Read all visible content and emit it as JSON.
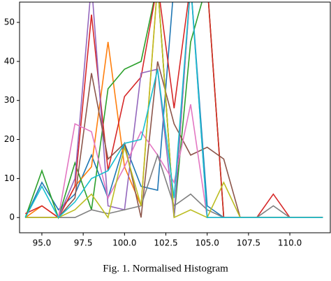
{
  "chart_data": {
    "type": "line",
    "caption": "Fig. 1.  Normalised Histogram",
    "x": [
      94,
      95,
      96,
      97,
      98,
      99,
      100,
      101,
      102,
      103,
      104,
      105,
      106,
      107,
      108,
      109,
      110,
      111,
      112
    ],
    "series": [
      {
        "color": "#1f77b4",
        "values": [
          0,
          9,
          2,
          6,
          16,
          5,
          19,
          8,
          7,
          60,
          60,
          3,
          0,
          0,
          0,
          0,
          0,
          0,
          0
        ]
      },
      {
        "color": "#ff7f0e",
        "values": [
          0,
          3,
          0,
          8,
          13,
          45,
          13,
          3,
          60,
          0,
          60,
          60,
          0,
          0,
          0,
          0,
          0,
          0,
          0
        ]
      },
      {
        "color": "#2ca02c",
        "values": [
          0,
          12,
          0,
          14,
          2,
          33,
          38,
          40,
          60,
          0,
          45,
          60,
          0,
          0,
          0,
          0,
          0,
          0,
          0
        ]
      },
      {
        "color": "#d62728",
        "values": [
          1,
          3,
          0,
          8,
          52,
          12,
          31,
          36,
          60,
          28,
          60,
          60,
          0,
          0,
          0,
          6,
          0,
          0,
          0
        ]
      },
      {
        "color": "#9467bd",
        "values": [
          0,
          0,
          0,
          10,
          60,
          3,
          2,
          37,
          38,
          0,
          60,
          0,
          0,
          0,
          0,
          0,
          0,
          0,
          0
        ]
      },
      {
        "color": "#8c564b",
        "values": [
          0,
          0,
          0,
          5,
          37,
          15,
          19,
          0,
          40,
          24,
          16,
          18,
          15,
          0,
          0,
          0,
          0,
          0,
          0
        ]
      },
      {
        "color": "#e377c2",
        "values": [
          0,
          0,
          0,
          24,
          22,
          5,
          13,
          22,
          16,
          9,
          29,
          0,
          0,
          0,
          0,
          0,
          0,
          0,
          0
        ]
      },
      {
        "color": "#7f7f7f",
        "values": [
          0,
          0,
          0,
          0,
          2,
          1,
          2,
          3,
          16,
          3,
          6,
          2,
          0,
          0,
          0,
          3,
          0,
          0,
          0
        ]
      },
      {
        "color": "#bcbd22",
        "values": [
          0,
          0,
          0,
          2,
          6,
          0,
          18,
          3,
          60,
          0,
          2,
          0,
          9,
          0,
          0,
          0,
          0,
          0,
          0
        ]
      },
      {
        "color": "#17becf",
        "values": [
          0,
          8,
          0,
          4,
          10,
          12,
          19,
          20,
          38,
          5,
          60,
          0,
          0,
          0,
          0,
          0,
          0,
          0,
          0
        ]
      }
    ],
    "xlim": [
      93.65,
      112.49
    ],
    "ylim": [
      -3.9,
      55.2
    ],
    "xticks": [
      {
        "value": 95,
        "label": "95.0"
      },
      {
        "value": 97.5,
        "label": "97.5"
      },
      {
        "value": 100,
        "label": "100.0"
      },
      {
        "value": 102.5,
        "label": "102.5"
      },
      {
        "value": 105,
        "label": "105.0"
      },
      {
        "value": 107.5,
        "label": "107.5"
      },
      {
        "value": 110,
        "label": "110.0"
      }
    ],
    "yticks": [
      0,
      10,
      20,
      30,
      40,
      50
    ]
  }
}
